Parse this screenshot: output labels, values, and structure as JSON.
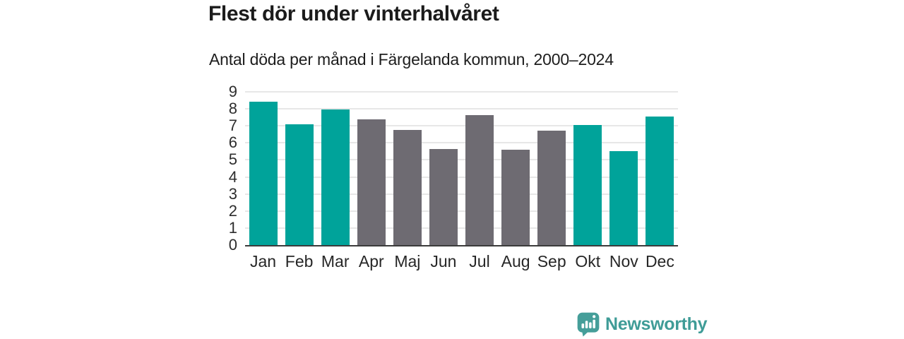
{
  "chart_data": {
    "type": "bar",
    "title": "Flest dör under vinterhalvåret",
    "subtitle": "Antal döda per månad i Färgelanda kommun, 2000–2024",
    "categories": [
      "Jan",
      "Feb",
      "Mar",
      "Apr",
      "Maj",
      "Jun",
      "Jul",
      "Aug",
      "Sep",
      "Okt",
      "Nov",
      "Dec"
    ],
    "values": [
      8.4,
      7.1,
      7.95,
      7.4,
      6.75,
      5.65,
      7.65,
      5.6,
      6.7,
      7.05,
      5.5,
      7.55
    ],
    "bar_color_keys": [
      "winter",
      "winter",
      "winter",
      "summer",
      "summer",
      "summer",
      "summer",
      "summer",
      "summer",
      "winter",
      "winter",
      "winter"
    ],
    "palette": {
      "winter": "#00a39a",
      "summer": "#6e6b72"
    },
    "xlabel": "",
    "ylabel": "",
    "ylim": [
      0,
      9
    ],
    "y_ticks": [
      0,
      1,
      2,
      3,
      4,
      5,
      6,
      7,
      8,
      9
    ],
    "grid": "horizontal",
    "legend": "none",
    "axis_color": "#3b3b3b",
    "gridline_color": "#e7e7e7"
  },
  "branding": {
    "wordmark": "Newsworthy",
    "icon": "newsworthy-speech-bubble-bar-chart-icon",
    "brand_color": "#459e99"
  }
}
